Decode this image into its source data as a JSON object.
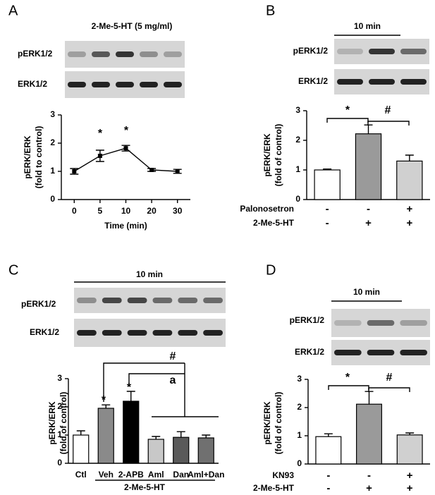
{
  "chart_data": [
    {
      "type": "line",
      "panel_label": "A",
      "blot_title": "2-Me-5-HT (5 mg/ml)",
      "blot_labels": [
        "pERK1/2",
        "ERK1/2"
      ],
      "categories": [
        "0",
        "5",
        "10",
        "20",
        "30"
      ],
      "values": [
        1.0,
        1.55,
        1.82,
        1.05,
        1.0
      ],
      "errors": [
        0.1,
        0.2,
        0.1,
        0.05,
        0.07
      ],
      "ylim": [
        0,
        3
      ],
      "yticks": [
        0,
        1,
        2,
        3
      ],
      "y_label": [
        "pERK/ERK",
        "(fold to control)"
      ],
      "x_label": "Time (min)",
      "color": "#000000",
      "annotations": [
        "*",
        "*"
      ]
    },
    {
      "type": "bar",
      "panel_label": "B",
      "blot_title": "10 min",
      "blot_labels": [
        "pERK1/2",
        "ERK1/2"
      ],
      "values": [
        1.0,
        2.22,
        1.3
      ],
      "errors": [
        0.03,
        0.3,
        0.2
      ],
      "colors": [
        "#ffffff",
        "#9a9a9a",
        "#d0d0d0"
      ],
      "ylim": [
        0,
        3
      ],
      "yticks": [
        0,
        1,
        2,
        3
      ],
      "y_label": [
        "pERK/ERK",
        "(fold of control)"
      ],
      "treatments": [
        {
          "name": "Palonosetron",
          "signs": [
            "-",
            "-",
            "+"
          ]
        },
        {
          "name": "2-Me-5-HT",
          "signs": [
            "-",
            "+",
            "+"
          ]
        }
      ],
      "annotations": [
        "*",
        "#"
      ]
    },
    {
      "type": "bar",
      "panel_label": "C",
      "blot_title": "10 min",
      "blot_labels": [
        "pERK1/2",
        "ERK1/2"
      ],
      "categories": [
        "Ctl",
        "Veh",
        "2-APB",
        "Aml",
        "Dan",
        "Aml+Dan"
      ],
      "values": [
        1.0,
        1.95,
        2.2,
        0.85,
        0.92,
        0.9
      ],
      "errors": [
        0.15,
        0.12,
        0.35,
        0.1,
        0.2,
        0.1
      ],
      "colors": [
        "#ffffff",
        "#8a8a8a",
        "#000000",
        "#c8c8c8",
        "#5a5a5a",
        "#707070"
      ],
      "ylim": [
        0,
        3
      ],
      "yticks": [
        0,
        1,
        2,
        3
      ],
      "y_label": [
        "pERK/ERK",
        "(fold of control)"
      ],
      "group_label": "2-Me-5-HT",
      "annotations": [
        "*",
        "*",
        "#",
        "a"
      ]
    },
    {
      "type": "bar",
      "panel_label": "D",
      "blot_title": "10 min",
      "blot_labels": [
        "pERK1/2",
        "ERK1/2"
      ],
      "values": [
        0.97,
        2.12,
        1.03
      ],
      "errors": [
        0.1,
        0.45,
        0.07
      ],
      "colors": [
        "#ffffff",
        "#9a9a9a",
        "#d0d0d0"
      ],
      "ylim": [
        0,
        3
      ],
      "yticks": [
        0,
        1,
        2,
        3
      ],
      "y_label": [
        "pERK/ERK",
        "(fold of control)"
      ],
      "treatments": [
        {
          "name": "KN93",
          "signs": [
            "-",
            "-",
            "+"
          ]
        },
        {
          "name": "2-Me-5-HT",
          "signs": [
            "-",
            "+",
            "+"
          ]
        }
      ],
      "annotations": [
        "*",
        "#"
      ]
    }
  ]
}
